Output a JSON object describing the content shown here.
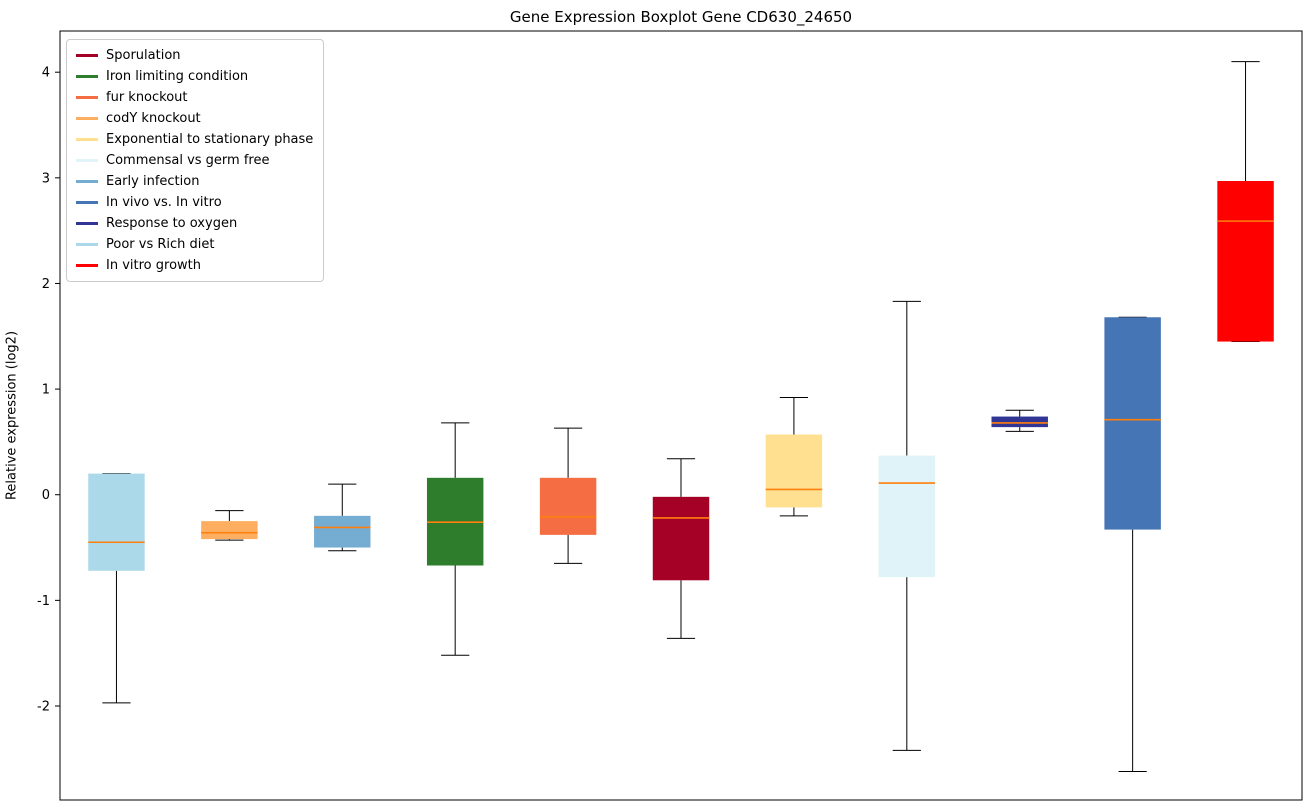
{
  "chart_data": {
    "type": "boxplot",
    "title": "Gene Expression Boxplot Gene CD630_24650",
    "xlabel": "",
    "ylabel": "Relative expression (log2)",
    "ylim": [
      -2.89,
      4.39
    ],
    "yticks": [
      -2,
      -1,
      0,
      1,
      2,
      3,
      4
    ],
    "xticklabels": [],
    "grid": false,
    "legend_position": "upper left",
    "median_color": "#ff7f0e",
    "whisker_color": "#000000",
    "legend": [
      {
        "label": "Sporulation",
        "color": "#a50026"
      },
      {
        "label": "Iron limiting condition",
        "color": "#2d7d2d"
      },
      {
        "label": "fur knockout",
        "color": "#f46d43"
      },
      {
        "label": "codY knockout",
        "color": "#fdae61"
      },
      {
        "label": "Exponential to stationary phase",
        "color": "#fee090"
      },
      {
        "label": "Commensal vs germ free",
        "color": "#e0f3f8"
      },
      {
        "label": "Early infection",
        "color": "#74add1"
      },
      {
        "label": "In vivo vs. In vitro",
        "color": "#4575b4"
      },
      {
        "label": "Response to oxygen",
        "color": "#313695"
      },
      {
        "label": "Poor vs Rich diet",
        "color": "#abd9e9"
      },
      {
        "label": "In vitro growth",
        "color": "#ff0000"
      }
    ],
    "boxes": [
      {
        "condition": "Poor vs Rich diet",
        "color": "#abd9e9",
        "whisker_low": -1.97,
        "q1": -0.72,
        "median": -0.45,
        "q3": 0.2,
        "whisker_high": 0.2
      },
      {
        "condition": "codY knockout",
        "color": "#fdae61",
        "whisker_low": -0.43,
        "q1": -0.42,
        "median": -0.36,
        "q3": -0.25,
        "whisker_high": -0.15
      },
      {
        "condition": "Early infection",
        "color": "#74add1",
        "whisker_low": -0.53,
        "q1": -0.5,
        "median": -0.31,
        "q3": -0.2,
        "whisker_high": 0.1
      },
      {
        "condition": "Iron limiting condition",
        "color": "#2d7d2d",
        "whisker_low": -1.52,
        "q1": -0.67,
        "median": -0.26,
        "q3": 0.16,
        "whisker_high": 0.68
      },
      {
        "condition": "fur knockout",
        "color": "#f46d43",
        "whisker_low": -0.65,
        "q1": -0.38,
        "median": -0.21,
        "q3": 0.16,
        "whisker_high": 0.63
      },
      {
        "condition": "Sporulation",
        "color": "#a50026",
        "whisker_low": -1.36,
        "q1": -0.81,
        "median": -0.22,
        "q3": -0.02,
        "whisker_high": 0.34
      },
      {
        "condition": "Exponential to stationary phase",
        "color": "#fee090",
        "whisker_low": -0.2,
        "q1": -0.12,
        "median": 0.05,
        "q3": 0.57,
        "whisker_high": 0.92
      },
      {
        "condition": "Commensal vs germ free",
        "color": "#e0f3f8",
        "whisker_low": -2.42,
        "q1": -0.78,
        "median": 0.11,
        "q3": 0.37,
        "whisker_high": 1.83
      },
      {
        "condition": "Response to oxygen",
        "color": "#313695",
        "whisker_low": 0.6,
        "q1": 0.64,
        "median": 0.68,
        "q3": 0.74,
        "whisker_high": 0.8
      },
      {
        "condition": "In vivo vs. In vitro",
        "color": "#4575b4",
        "whisker_low": -2.62,
        "q1": -0.33,
        "median": 0.71,
        "q3": 1.68,
        "whisker_high": 1.68
      },
      {
        "condition": "In vitro growth",
        "color": "#ff0000",
        "whisker_low": 1.45,
        "q1": 1.45,
        "median": 2.59,
        "q3": 2.97,
        "whisker_high": 4.1
      }
    ]
  }
}
